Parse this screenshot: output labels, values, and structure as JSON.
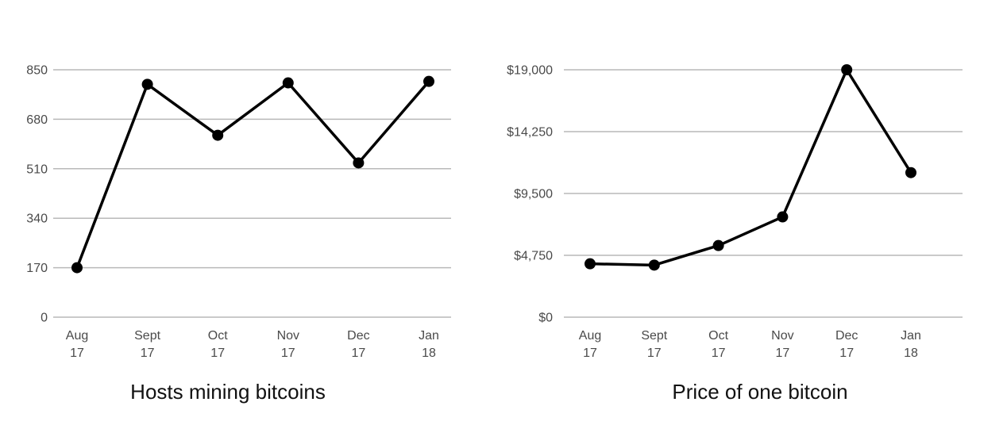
{
  "chart_data": [
    {
      "type": "line",
      "title": "Hosts mining bitcoins",
      "xlabel": "",
      "ylabel": "",
      "categories": [
        [
          "Aug",
          "17"
        ],
        [
          "Sept",
          "17"
        ],
        [
          "Oct",
          "17"
        ],
        [
          "Nov",
          "17"
        ],
        [
          "Dec",
          "17"
        ],
        [
          "Jan",
          "18"
        ]
      ],
      "yticks": [
        0,
        170,
        340,
        510,
        680,
        850
      ],
      "ytick_labels": [
        "0",
        "170",
        "340",
        "510",
        "680",
        "850"
      ],
      "ylim": [
        0,
        850
      ],
      "grid": true,
      "legend": "none",
      "series": [
        {
          "values": [
            170,
            800,
            625,
            805,
            530,
            810
          ],
          "color": "#000000"
        }
      ]
    },
    {
      "type": "line",
      "title": "Price of one bitcoin",
      "xlabel": "",
      "ylabel": "",
      "categories": [
        [
          "Aug",
          "17"
        ],
        [
          "Sept",
          "17"
        ],
        [
          "Oct",
          "17"
        ],
        [
          "Nov",
          "17"
        ],
        [
          "Dec",
          "17"
        ],
        [
          "Jan",
          "18"
        ]
      ],
      "yticks": [
        0,
        4750,
        9500,
        14250,
        19000
      ],
      "ytick_labels": [
        "$0",
        "$4,750",
        "$9,500",
        "$14,250",
        "$19,000"
      ],
      "ylim": [
        0,
        19000
      ],
      "grid": true,
      "legend": "none",
      "series": [
        {
          "values": [
            4100,
            4000,
            5500,
            7700,
            19000,
            11100
          ],
          "color": "#000000"
        }
      ]
    }
  ]
}
